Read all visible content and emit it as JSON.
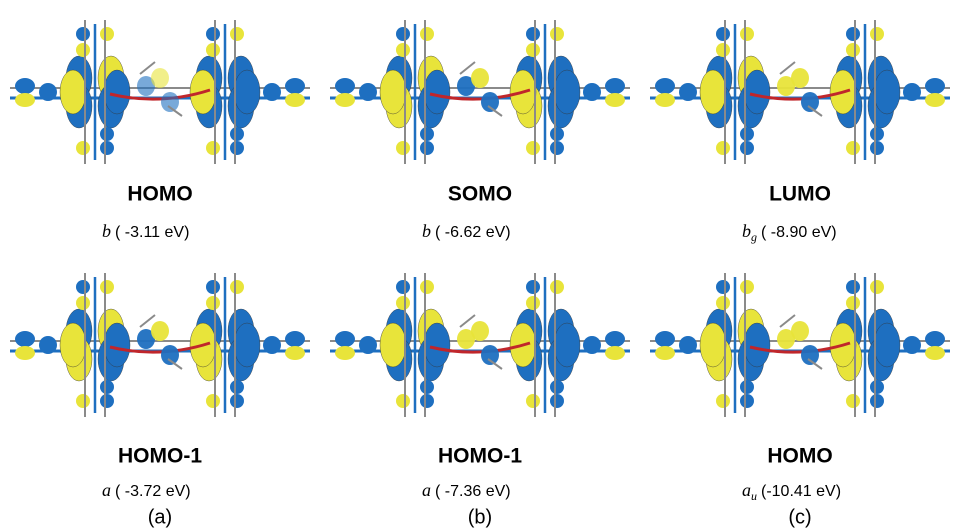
{
  "columns": [
    {
      "label": "(a)",
      "orbitals": [
        {
          "name": "HOMO",
          "symmetry": "b",
          "energy": "( -3.11 eV)"
        },
        {
          "name": "HOMO-1",
          "symmetry": "a",
          "energy": "( -3.72 eV)"
        }
      ]
    },
    {
      "label": "(b)",
      "orbitals": [
        {
          "name": "SOMO",
          "symmetry": "b",
          "energy": "( -6.62 eV)"
        },
        {
          "name": "HOMO-1",
          "symmetry": "a",
          "energy": "( -7.36 eV)"
        }
      ]
    },
    {
      "label": "(c)",
      "orbitals": [
        {
          "name": "LUMO",
          "symmetry": "b",
          "subscript": "g",
          "energy": "( -8.90 eV)"
        },
        {
          "name": "HOMO",
          "symmetry": "a",
          "subscript": "u",
          "energy": "(-10.41 eV)"
        }
      ]
    }
  ]
}
